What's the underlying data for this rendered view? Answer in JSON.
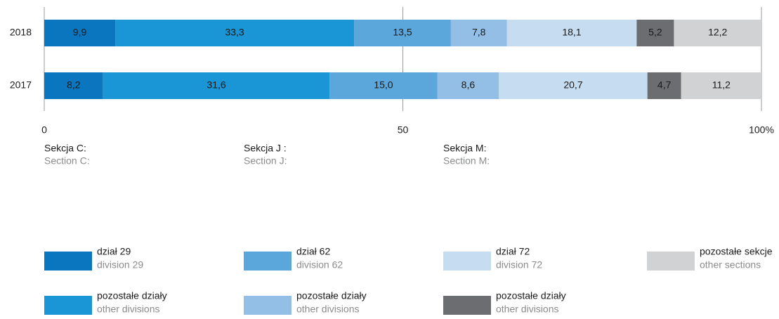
{
  "chart_data": {
    "type": "stacked_barh",
    "categories": [
      "2018",
      "2017"
    ],
    "series": [
      {
        "name": "dział 29",
        "name_en": "division 29",
        "group": 0,
        "color": "#0a76c0",
        "values": [
          9.9,
          8.2
        ],
        "value_labels": [
          "9,9",
          "8,2"
        ]
      },
      {
        "name": "pozostałe działy",
        "name_en": "other divisions",
        "group": 0,
        "color": "#1a95d5",
        "values": [
          33.3,
          31.6
        ],
        "value_labels": [
          "33,3",
          "31,6"
        ]
      },
      {
        "name": "dział 62",
        "name_en": "division 62",
        "group": 1,
        "color": "#5ba7dc",
        "values": [
          13.5,
          15.0
        ],
        "value_labels": [
          "13,5",
          "15,0"
        ]
      },
      {
        "name": "pozostałe działy",
        "name_en": "other divisions",
        "group": 1,
        "color": "#93bfe6",
        "values": [
          7.8,
          8.6
        ],
        "value_labels": [
          "7,8",
          "8,6"
        ]
      },
      {
        "name": "dział 72",
        "name_en": "division 72",
        "group": 2,
        "color": "#c6dcf1",
        "values": [
          18.1,
          20.7
        ],
        "value_labels": [
          "18,1",
          "20,7"
        ]
      },
      {
        "name": "pozostałe działy",
        "name_en": "other divisions",
        "group": 2,
        "color": "#6c6d70",
        "values": [
          5.2,
          4.7
        ],
        "value_labels": [
          "5,2",
          "4,7"
        ]
      },
      {
        "name": "pozostałe sekcje",
        "name_en": "other sections",
        "group": null,
        "color": "#d1d2d4",
        "values": [
          12.2,
          11.2
        ],
        "value_labels": [
          "12,2",
          "11,2"
        ]
      }
    ],
    "legend_groups": [
      {
        "label": "Sekcja C:",
        "label_en": "Section C:"
      },
      {
        "label": "Sekcja J :",
        "label_en": "Section J:"
      },
      {
        "label": "Sekcja M:",
        "label_en": "Section M:"
      }
    ],
    "xlim": [
      0,
      100
    ],
    "xticks": [
      0,
      50,
      {
        "value": 100,
        "label": "100%"
      }
    ],
    "grid": true
  }
}
